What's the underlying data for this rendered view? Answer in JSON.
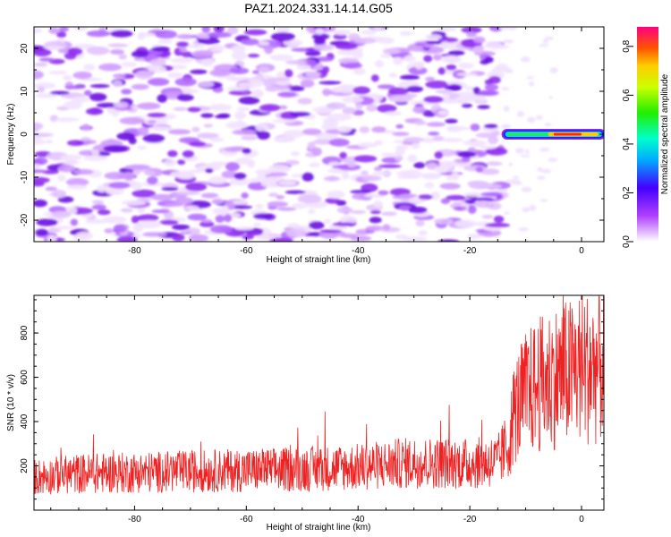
{
  "title": "PAZ1.2024.331.14.14.G05",
  "colors": {
    "snr_line": "#ee2222",
    "frame": "#000000",
    "background": "#ffffff"
  },
  "chart_data": [
    {
      "type": "heatmap",
      "xlabel": "Height of straight line (km)",
      "ylabel": "Frequency (Hz)",
      "xlim": [
        -98,
        4
      ],
      "ylim": [
        -25,
        25
      ],
      "xticks": [
        -80,
        -60,
        -40,
        -20,
        0
      ],
      "yticks": [
        -20,
        -10,
        0,
        10,
        20
      ],
      "colormap": "rainbow (white-purple-blue-cyan-green-yellow-orange-red-magenta)",
      "colorbar": {
        "label": "Normalized spectral amplitude",
        "range": [
          0.0,
          0.88
        ],
        "ticks": [
          0.0,
          0.2,
          0.4,
          0.6,
          0.8
        ]
      },
      "features": [
        {
          "desc": "diffuse noise",
          "x_range": [
            -98,
            -14
          ],
          "y_range": [
            -25,
            25
          ],
          "amplitude": 0.1
        },
        {
          "desc": "strong carrier line",
          "x_range": [
            -14,
            4
          ],
          "y": 0,
          "amplitude_peak": 0.88
        }
      ]
    },
    {
      "type": "line",
      "xlabel": "Height of straight line (km)",
      "ylabel": "SNR (10 * v/v)",
      "xlim": [
        -98,
        4
      ],
      "ylim": [
        0,
        970
      ],
      "xticks": [
        -80,
        -60,
        -40,
        -20,
        0
      ],
      "yticks": [
        200,
        400,
        600,
        800
      ],
      "series": [
        {
          "x": [
            -98,
            -90,
            -80,
            -70,
            -60,
            -50,
            -40,
            -30,
            -20,
            -15,
            -13,
            -12,
            -10,
            -8,
            -5,
            -2,
            0,
            2,
            4
          ],
          "y": [
            150,
            165,
            170,
            175,
            180,
            185,
            195,
            215,
            210,
            220,
            300,
            450,
            520,
            560,
            600,
            620,
            650,
            640,
            660
          ]
        }
      ]
    }
  ]
}
